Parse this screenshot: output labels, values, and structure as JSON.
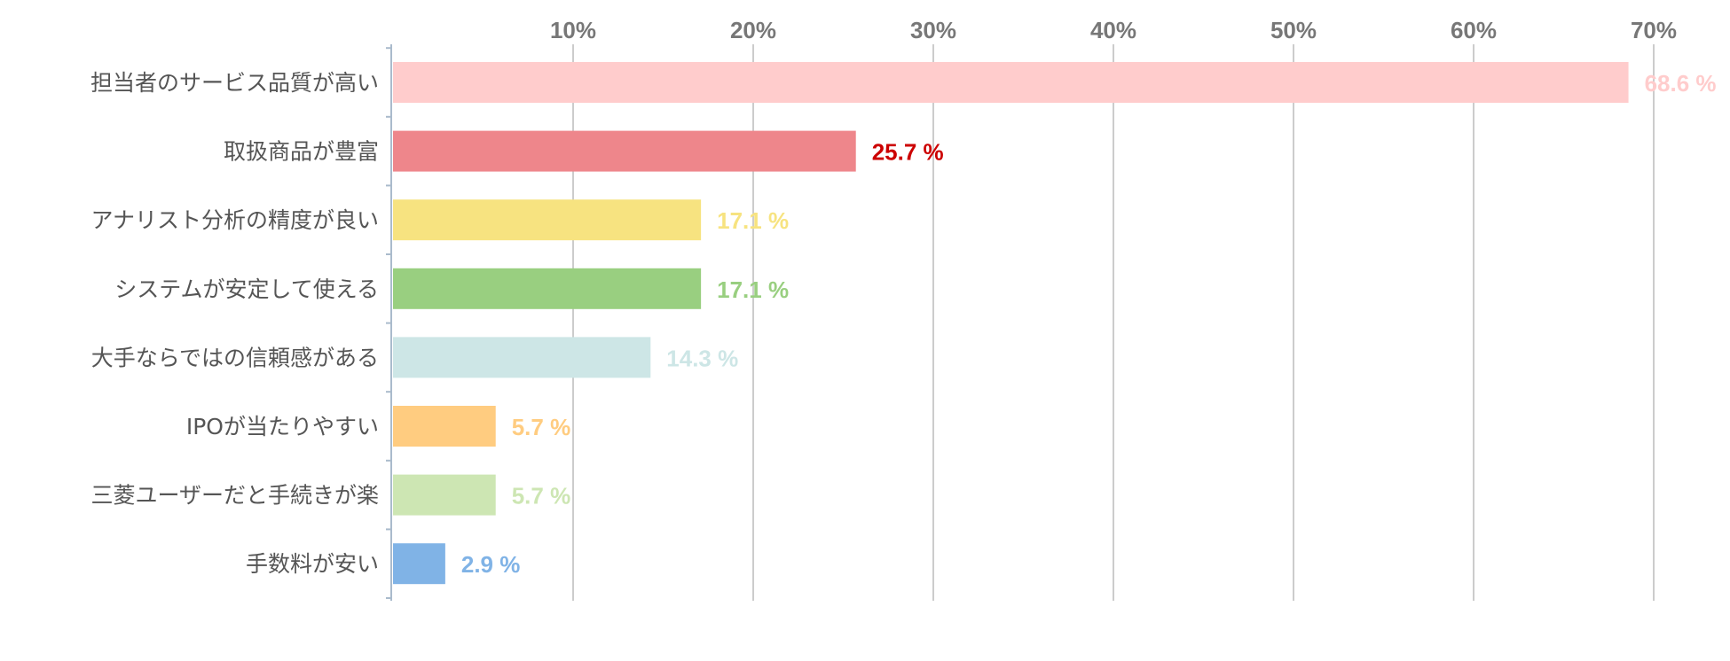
{
  "chart_data": {
    "type": "bar",
    "orientation": "horizontal",
    "title": "",
    "xlabel": "",
    "ylabel": "",
    "xlim": [
      0,
      72
    ],
    "grid": true,
    "tick_values": [
      10,
      20,
      30,
      40,
      50,
      60,
      70
    ],
    "tick_labels": [
      "10%",
      "20%",
      "30%",
      "40%",
      "50%",
      "60%",
      "70%"
    ],
    "tick_position": "top",
    "value_suffix": " %",
    "categories": [
      "担当者のサービス品質が高い",
      "取扱商品が豊富",
      "アナリスト分析の精度が良い",
      "システムが安定して使える",
      "大手ならではの信頼感がある",
      "IPOが当たりやすい",
      "三菱ユーザーだと手続きが楽",
      "手数料が安い"
    ],
    "values": [
      68.6,
      25.7,
      17.1,
      17.1,
      14.3,
      5.7,
      5.7,
      2.9
    ],
    "value_labels": [
      "68.6 %",
      "25.7 %",
      "17.1 %",
      "17.1 %",
      "14.3 %",
      "5.7 %",
      "5.7 %",
      "2.9 %"
    ],
    "bar_colors": [
      "#ffcccc",
      "#ee868b",
      "#f7e380",
      "#99cf80",
      "#cde6e6",
      "#ffcc80",
      "#cde6b3",
      "#80b3e6"
    ],
    "label_colors": [
      "#ffcccc",
      "#cc0000",
      "#f7e380",
      "#99cf80",
      "#cde6e6",
      "#ffcc80",
      "#cde6b3",
      "#80b3e6"
    ],
    "grid_color": "#bbbbbb",
    "axis_color": "#aabbcc"
  }
}
